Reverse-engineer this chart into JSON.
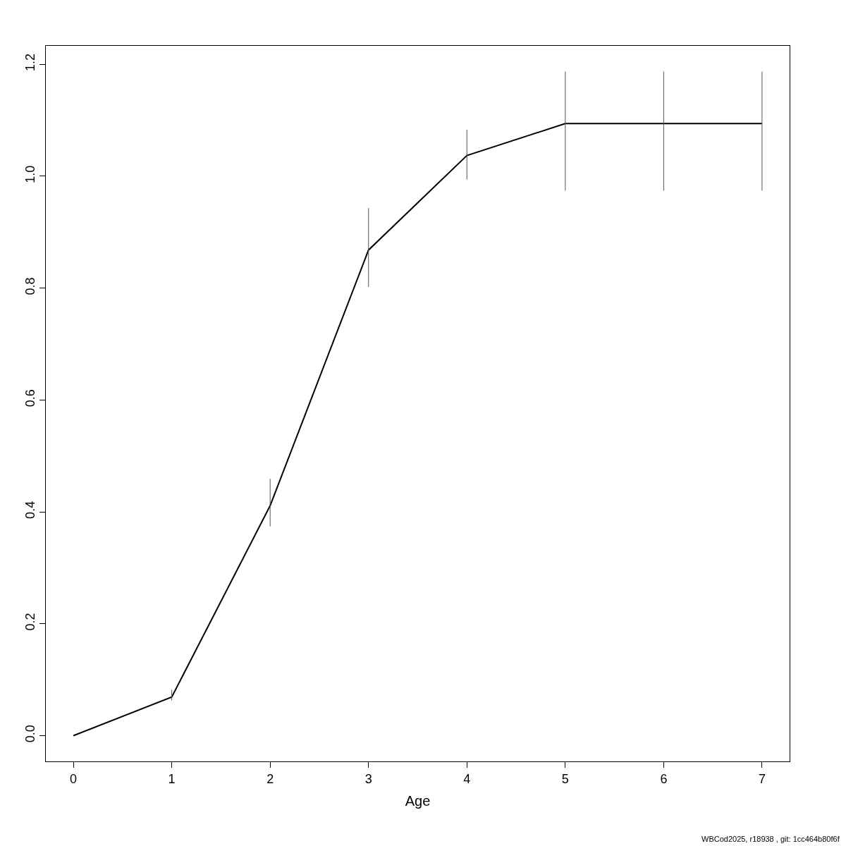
{
  "chart_data": {
    "type": "line",
    "xlabel": "Age",
    "x": [
      0,
      1,
      2,
      3,
      4,
      5,
      6,
      7
    ],
    "series": [
      {
        "color": "#000000",
        "values": [
          0.0,
          0.069,
          0.411,
          0.868,
          1.037,
          1.094,
          1.094,
          1.094
        ],
        "errors": [
          null,
          [
            0.063,
            0.082
          ],
          [
            0.374,
            0.459
          ],
          [
            0.802,
            0.943
          ],
          [
            0.994,
            1.083
          ],
          [
            0.974,
            1.187
          ],
          [
            0.974,
            1.187
          ],
          [
            0.974,
            1.187
          ]
        ]
      }
    ],
    "xlim": [
      -0.28,
      7.28
    ],
    "xticks": [
      0,
      1,
      2,
      3,
      4,
      5,
      6,
      7
    ],
    "ylim": [
      -0.046,
      1.233
    ],
    "yticks": [
      {
        "value": 0,
        "label": "0.0"
      },
      {
        "value": 0.2,
        "label": "0.2"
      },
      {
        "value": 0.4,
        "label": "0.4"
      },
      {
        "value": 0.6,
        "label": "0.6"
      },
      {
        "value": 0.8,
        "label": "0.8"
      },
      {
        "value": 1.0,
        "label": "1.0"
      },
      {
        "value": 1.2,
        "label": "1.2"
      }
    ],
    "marker": "none",
    "line_style": "solid",
    "annotations": [
      "WBCod2025, r18938 , git: 1cc464b80f6f"
    ]
  }
}
